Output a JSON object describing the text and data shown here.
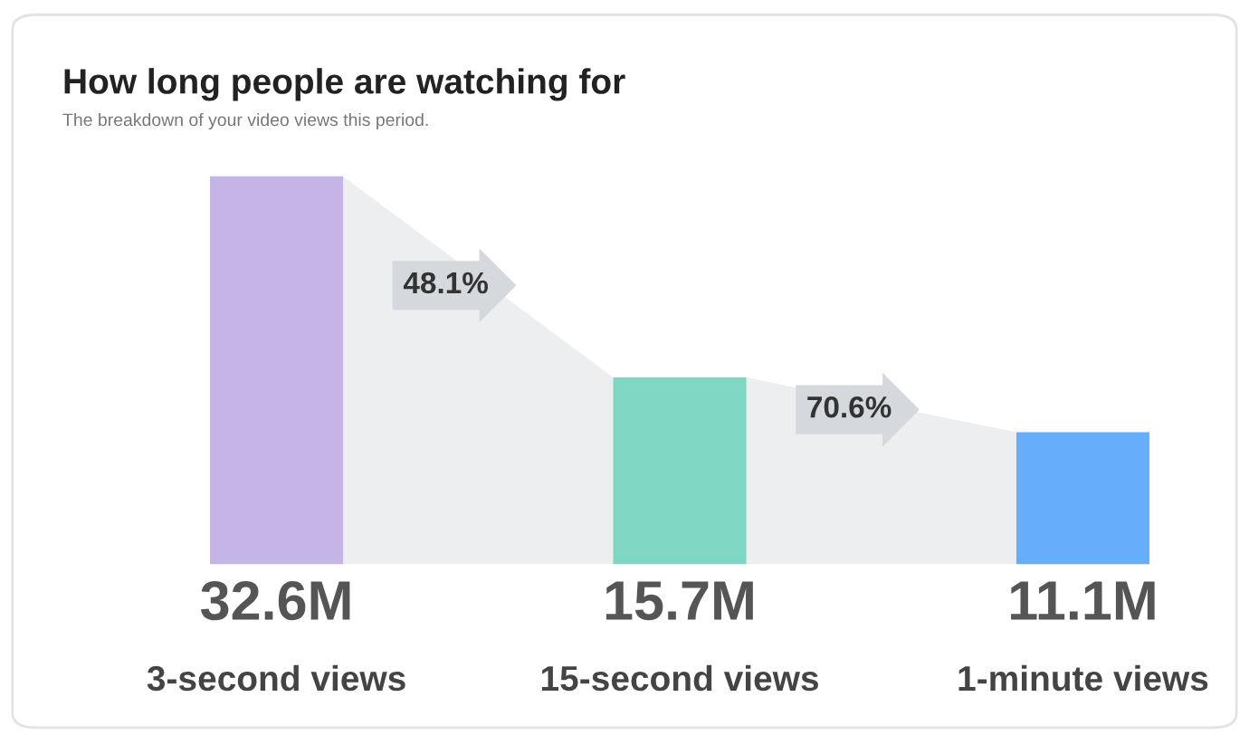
{
  "chart_data": {
    "type": "bar",
    "title": "How long people are watching for",
    "subtitle": "The breakdown of your video views this period.",
    "categories": [
      "3-second views",
      "15-second views",
      "1-minute views"
    ],
    "values": [
      32.6,
      15.7,
      11.1
    ],
    "colors": [
      "#c5b5e6",
      "#7fd6c2",
      "#66aefc"
    ],
    "value_labels": [
      "32.6M",
      "15.7M",
      "11.1M"
    ],
    "annotations": [
      "48.1%",
      "70.6%"
    ]
  }
}
